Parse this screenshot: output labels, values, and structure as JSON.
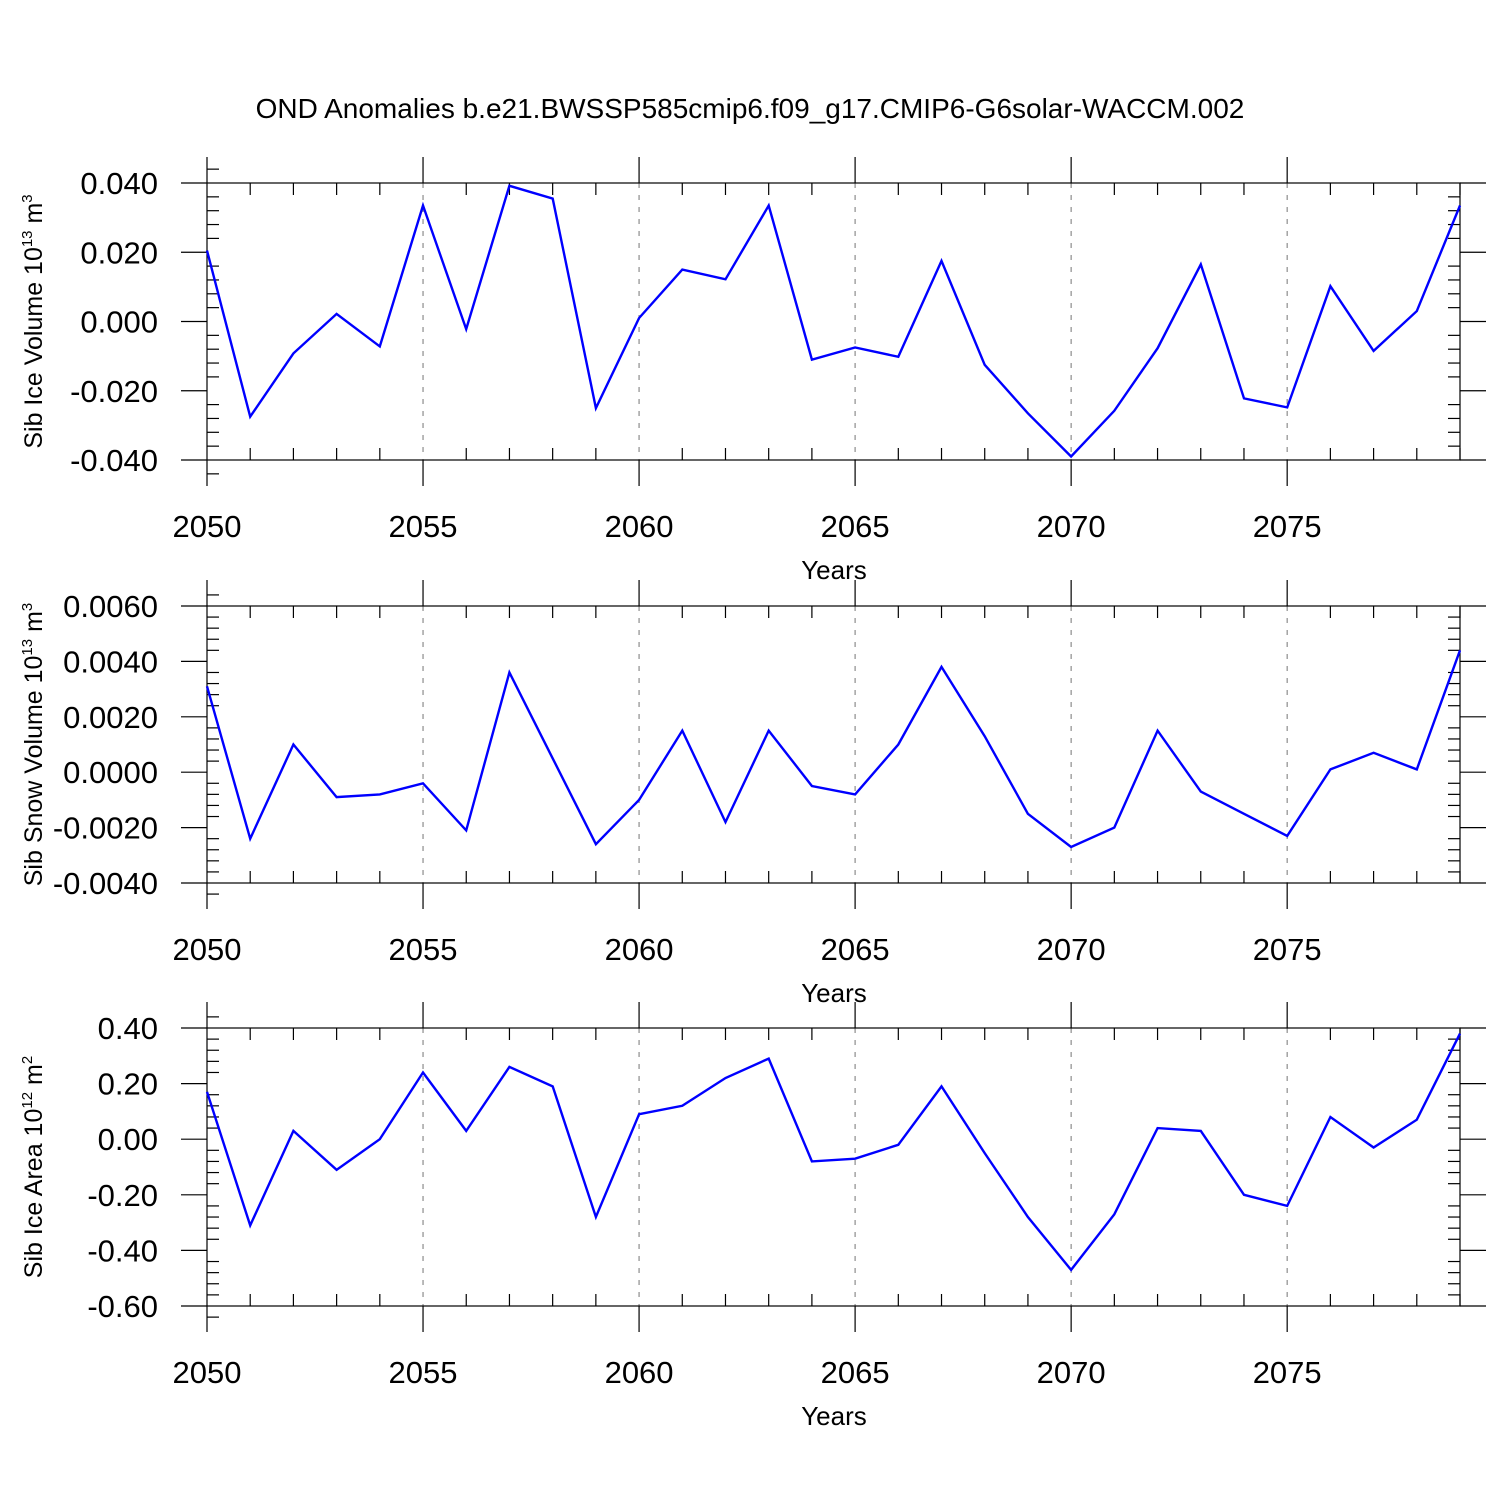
{
  "chart_title": "OND Anomalies b.e21.BWSSP585cmip6.f09_g17.CMIP6-G6solar-WACCM.002",
  "colors": {
    "line": "#0000ff",
    "axis": "#000000",
    "grid": "#8c8c8c"
  },
  "chart_data": [
    {
      "type": "line",
      "title": "OND Anomalies b.e21.BWSSP585cmip6.f09_g17.CMIP6-G6solar-WACCM.002",
      "xlabel": "Years",
      "ylabel": {
        "text": "Sib Ice Volume 10",
        "exp": "13",
        "unit": " m",
        "unit_exp": "3"
      },
      "x": [
        2050,
        2051,
        2052,
        2053,
        2054,
        2055,
        2056,
        2057,
        2058,
        2059,
        2060,
        2061,
        2062,
        2063,
        2064,
        2065,
        2066,
        2067,
        2068,
        2069,
        2070,
        2071,
        2072,
        2073,
        2074,
        2075,
        2076,
        2077,
        2078,
        2079
      ],
      "values": [
        0.0205,
        -0.0275,
        -0.0092,
        0.0022,
        -0.0072,
        0.0335,
        -0.0022,
        0.0392,
        0.0355,
        -0.025,
        0.001,
        0.015,
        0.0122,
        0.0335,
        -0.011,
        -0.0075,
        -0.0102,
        0.0175,
        -0.0125,
        -0.0265,
        -0.039,
        -0.0258,
        -0.0077,
        0.0165,
        -0.0222,
        -0.0248,
        0.0102,
        -0.0085,
        0.003,
        0.0335
      ],
      "xlim": [
        2050,
        2079
      ],
      "ylim": [
        -0.04,
        0.04
      ],
      "x_ticks": [
        2050,
        2055,
        2060,
        2065,
        2070,
        2075
      ],
      "x_tick_labels": [
        "2050",
        "2055",
        "2060",
        "2065",
        "2070",
        "2075"
      ],
      "y_ticks": [
        -0.04,
        -0.02,
        0.0,
        0.02,
        0.04
      ],
      "y_tick_labels": [
        "-0.040",
        "-0.020",
        "0.000",
        "0.020",
        "0.040"
      ],
      "grid": "vertical dashed at major x ticks"
    },
    {
      "type": "line",
      "xlabel": "Years",
      "ylabel": {
        "text": "Sib Snow Volume 10",
        "exp": "13",
        "unit": " m",
        "unit_exp": "3"
      },
      "x": [
        2050,
        2051,
        2052,
        2053,
        2054,
        2055,
        2056,
        2057,
        2058,
        2059,
        2060,
        2061,
        2062,
        2063,
        2064,
        2065,
        2066,
        2067,
        2068,
        2069,
        2070,
        2071,
        2072,
        2073,
        2074,
        2075,
        2076,
        2077,
        2078,
        2079
      ],
      "values": [
        0.0031,
        -0.0024,
        0.001,
        -0.0009,
        -0.0008,
        -0.0004,
        -0.0021,
        0.0036,
        0.0005,
        -0.0026,
        -0.001,
        0.0015,
        -0.0018,
        0.0015,
        -0.0005,
        -0.0008,
        0.001,
        0.0038,
        0.0013,
        -0.0015,
        -0.0027,
        -0.002,
        0.0015,
        -0.0007,
        -0.0015,
        -0.0023,
        0.0001,
        0.0007,
        0.0001,
        0.0044
      ],
      "xlim": [
        2050,
        2079
      ],
      "ylim": [
        -0.004,
        0.006
      ],
      "x_ticks": [
        2050,
        2055,
        2060,
        2065,
        2070,
        2075
      ],
      "x_tick_labels": [
        "2050",
        "2055",
        "2060",
        "2065",
        "2070",
        "2075"
      ],
      "y_ticks": [
        -0.004,
        -0.002,
        0.0,
        0.002,
        0.004,
        0.006
      ],
      "y_tick_labels": [
        "-0.0040",
        "-0.0020",
        "0.0000",
        "0.0020",
        "0.0040",
        "0.0060"
      ],
      "grid": "vertical dashed at major x ticks"
    },
    {
      "type": "line",
      "xlabel": "Years",
      "ylabel": {
        "text": "Sib Ice Area 10",
        "exp": "12",
        "unit": " m",
        "unit_exp": "2"
      },
      "x": [
        2050,
        2051,
        2052,
        2053,
        2054,
        2055,
        2056,
        2057,
        2058,
        2059,
        2060,
        2061,
        2062,
        2063,
        2064,
        2065,
        2066,
        2067,
        2068,
        2069,
        2070,
        2071,
        2072,
        2073,
        2074,
        2075,
        2076,
        2077,
        2078,
        2079
      ],
      "values": [
        0.17,
        -0.31,
        0.03,
        -0.11,
        0.0,
        0.24,
        0.03,
        0.26,
        0.19,
        -0.28,
        0.09,
        0.12,
        0.22,
        0.29,
        -0.08,
        -0.07,
        -0.02,
        0.19,
        -0.05,
        -0.28,
        -0.47,
        -0.27,
        0.04,
        0.03,
        -0.2,
        -0.24,
        0.08,
        -0.03,
        0.07,
        0.38
      ],
      "xlim": [
        2050,
        2079
      ],
      "ylim": [
        -0.6,
        0.4
      ],
      "x_ticks": [
        2050,
        2055,
        2060,
        2065,
        2070,
        2075
      ],
      "x_tick_labels": [
        "2050",
        "2055",
        "2060",
        "2065",
        "2070",
        "2075"
      ],
      "y_ticks": [
        -0.6,
        -0.4,
        -0.2,
        0.0,
        0.2,
        0.4
      ],
      "y_tick_labels": [
        "-0.60",
        "-0.40",
        "-0.20",
        "0.00",
        "0.20",
        "0.40"
      ],
      "grid": "vertical dashed at major x ticks"
    }
  ]
}
